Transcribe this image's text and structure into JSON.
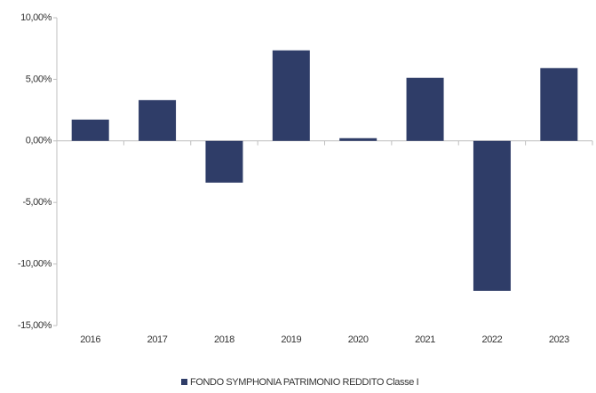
{
  "chart_data": {
    "type": "bar",
    "categories": [
      "2016",
      "2017",
      "2018",
      "2019",
      "2020",
      "2021",
      "2022",
      "2023"
    ],
    "series": [
      {
        "name": "FONDO SYMPHONIA PATRIMONIO REDDITO Classe I",
        "color": "#2f3d68",
        "values": [
          1.73,
          3.31,
          -3.39,
          7.35,
          0.22,
          5.12,
          -12.18,
          5.91
        ]
      }
    ],
    "ylim": [
      -15,
      10
    ],
    "yticks": [
      {
        "value": -15,
        "label": "-15,00%"
      },
      {
        "value": -10,
        "label": "-10,00%"
      },
      {
        "value": -5,
        "label": "-5,00%"
      },
      {
        "value": 0,
        "label": "0,00%"
      },
      {
        "value": 5,
        "label": "5,00%"
      },
      {
        "value": 10,
        "label": "10,00%"
      }
    ],
    "legend": "bottom"
  }
}
